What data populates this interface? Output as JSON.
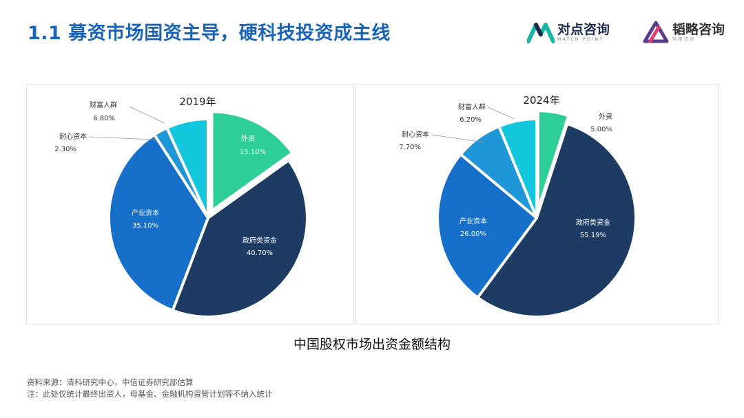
{
  "page": {
    "title": "1.1 募资市场国资主导，硬科技投资成主线",
    "caption": "中国股权市场出资金额结构",
    "source": "资料来源：清科研究中心，中信证券研究部估算",
    "note": "注：此处仅统计最终出资人，母基金、金融机构资管计划等不纳入统计"
  },
  "logos": {
    "duidian": {
      "name": "对点咨询",
      "sub": "MATCH POINT",
      "color": "#16b6a5"
    },
    "taolue": {
      "name": "韬略咨询",
      "sub": "韬略咨询",
      "color": "#5b3d8e"
    }
  },
  "chart_data": [
    {
      "type": "pie",
      "title": "2019年",
      "labels": [
        "外资",
        "政府类资金",
        "产业资本",
        "耐心资本",
        "财富人群"
      ],
      "values": [
        15.1,
        40.7,
        35.1,
        2.3,
        6.8
      ],
      "value_labels": [
        "15.10%",
        "40.70%",
        "35.10%",
        "2.30%",
        "6.80%"
      ],
      "colors": [
        "#2ecf96",
        "#1d3b63",
        "#1670c9",
        "#1e96d8",
        "#12c6dc"
      ],
      "exploded": "外资"
    },
    {
      "type": "pie",
      "title": "2024年",
      "labels": [
        "外资",
        "政府类资金",
        "产业资本",
        "耐心资本",
        "财富人群"
      ],
      "values": [
        5.0,
        55.19,
        26.0,
        7.7,
        6.2
      ],
      "value_labels": [
        "5.00%",
        "55.19%",
        "26.00%",
        "7.70%",
        "6.20%"
      ],
      "colors": [
        "#2ecf96",
        "#1d3b63",
        "#1670c9",
        "#1e96d8",
        "#12c6dc"
      ],
      "exploded": "外资"
    }
  ]
}
